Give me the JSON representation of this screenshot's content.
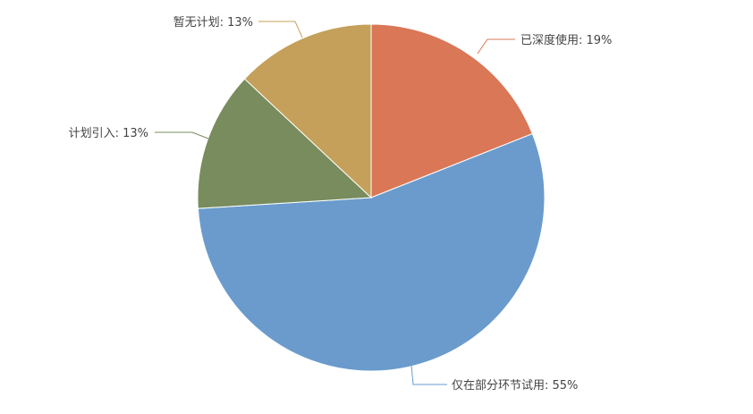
{
  "chart_data": {
    "type": "pie",
    "start": "top",
    "direction": "clockwise",
    "slices": [
      {
        "label": "已深度使用",
        "value": 19,
        "text": "已深度使用: 19%",
        "color": "#d97757"
      },
      {
        "label": "仅在部分环节试用",
        "value": 55,
        "text": "仅在部分环节试用: 55%",
        "color": "#6a9bcc"
      },
      {
        "label": "计划引入",
        "value": 13,
        "text": "计划引入: 13%",
        "color": "#788c5d"
      },
      {
        "label": "暂无计划",
        "value": 13,
        "text": "暂无计划: 13%",
        "color": "#c4a05a"
      }
    ]
  }
}
